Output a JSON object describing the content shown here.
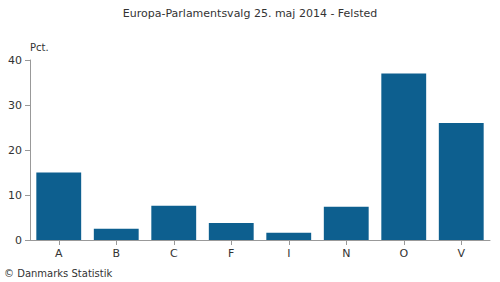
{
  "chart_data": {
    "type": "bar",
    "title": "Europa-Parlamentsvalg 25. maj 2014 - Felsted",
    "ylabel": "Pct.",
    "categories": [
      "A",
      "B",
      "C",
      "F",
      "I",
      "N",
      "O",
      "V"
    ],
    "values": [
      15,
      2.5,
      7.6,
      3.8,
      1.6,
      7.4,
      37,
      26
    ],
    "color": "#0d5f8f",
    "ylim": [
      0,
      40
    ],
    "yticks": [
      0,
      10,
      20,
      30,
      40
    ],
    "grid": false,
    "annotations": [
      "© Danmarks Statistik"
    ]
  }
}
